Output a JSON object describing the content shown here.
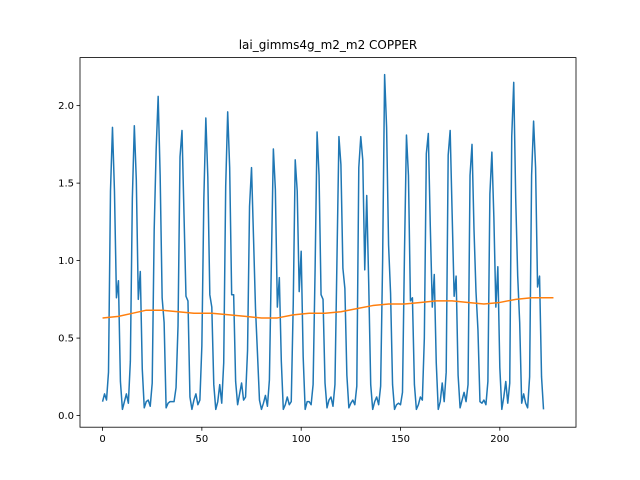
{
  "chart_data": {
    "type": "line",
    "title": "lai_gimms4g_m2_m2 COPPER",
    "xlabel": "",
    "ylabel": "",
    "xlim": [
      -11.35,
      238.35
    ],
    "ylim": [
      -0.075,
      2.31
    ],
    "x_ticks": [
      0,
      50,
      100,
      150,
      200
    ],
    "y_ticks": [
      0.0,
      0.5,
      1.0,
      1.5,
      2.0
    ],
    "y_tick_labels": [
      "0.0",
      "0.5",
      "1.0",
      "1.5",
      "2.0"
    ],
    "grid": false,
    "series": [
      {
        "color": "#1f77b4",
        "x_start": 0,
        "values": [
          0.09,
          0.14,
          0.1,
          0.28,
          1.45,
          1.86,
          1.45,
          0.76,
          0.87,
          0.22,
          0.04,
          0.09,
          0.14,
          0.08,
          0.35,
          1.4,
          1.87,
          1.52,
          0.75,
          0.93,
          0.3,
          0.05,
          0.09,
          0.1,
          0.06,
          0.21,
          1.2,
          1.72,
          2.06,
          1.55,
          0.76,
          0.6,
          0.05,
          0.08,
          0.09,
          0.09,
          0.09,
          0.18,
          0.58,
          1.67,
          1.84,
          1.3,
          0.77,
          0.74,
          0.12,
          0.04,
          0.1,
          0.14,
          0.07,
          0.1,
          0.45,
          1.4,
          1.92,
          1.54,
          0.78,
          0.7,
          0.2,
          0.04,
          0.09,
          0.2,
          0.08,
          0.34,
          1.48,
          1.96,
          1.6,
          0.78,
          0.78,
          0.22,
          0.07,
          0.14,
          0.21,
          0.1,
          0.12,
          0.42,
          1.35,
          1.6,
          1.15,
          0.69,
          0.4,
          0.1,
          0.04,
          0.08,
          0.13,
          0.06,
          0.23,
          1.0,
          1.72,
          1.46,
          0.7,
          0.89,
          0.35,
          0.04,
          0.07,
          0.12,
          0.07,
          0.09,
          0.72,
          1.65,
          1.45,
          0.8,
          1.06,
          0.38,
          0.04,
          0.09,
          0.09,
          0.07,
          0.2,
          0.94,
          1.83,
          1.55,
          0.78,
          0.75,
          0.21,
          0.05,
          0.1,
          0.12,
          0.06,
          0.2,
          1.0,
          1.8,
          1.62,
          0.95,
          0.82,
          0.26,
          0.05,
          0.08,
          0.1,
          0.07,
          0.19,
          1.6,
          1.8,
          1.65,
          0.94,
          1.42,
          0.85,
          0.2,
          0.04,
          0.09,
          0.12,
          0.07,
          0.19,
          1.0,
          2.2,
          1.86,
          1.1,
          0.79,
          0.2,
          0.04,
          0.07,
          0.08,
          0.07,
          0.15,
          1.05,
          1.81,
          1.55,
          0.74,
          0.76,
          0.2,
          0.04,
          0.07,
          0.12,
          0.1,
          0.5,
          1.69,
          1.82,
          1.22,
          0.7,
          0.91,
          0.34,
          0.04,
          0.09,
          0.21,
          0.09,
          0.28,
          1.68,
          1.84,
          1.3,
          0.77,
          0.9,
          0.26,
          0.05,
          0.1,
          0.15,
          0.09,
          0.2,
          1.55,
          1.75,
          1.2,
          0.8,
          0.55,
          0.09,
          0.08,
          0.1,
          0.07,
          0.22,
          1.43,
          1.7,
          1.28,
          0.7,
          0.96,
          0.31,
          0.04,
          0.12,
          0.22,
          0.08,
          0.21,
          1.8,
          2.15,
          1.4,
          0.9,
          0.6,
          0.08,
          0.14,
          0.08,
          0.05,
          0.25,
          1.55,
          1.9,
          1.6,
          0.83,
          0.9,
          0.25,
          0.04
        ]
      },
      {
        "color": "#ff7f0e",
        "x": [
          0,
          8,
          15,
          22,
          30,
          38,
          46,
          55,
          64,
          72,
          80,
          88,
          96,
          104,
          112,
          120,
          128,
          136,
          144,
          152,
          160,
          168,
          176,
          184,
          192,
          200,
          208,
          216,
          227
        ],
        "values": [
          0.63,
          0.64,
          0.66,
          0.68,
          0.68,
          0.67,
          0.66,
          0.66,
          0.65,
          0.64,
          0.63,
          0.63,
          0.65,
          0.66,
          0.66,
          0.67,
          0.69,
          0.71,
          0.72,
          0.72,
          0.73,
          0.74,
          0.74,
          0.73,
          0.72,
          0.73,
          0.75,
          0.76,
          0.76
        ]
      }
    ]
  }
}
